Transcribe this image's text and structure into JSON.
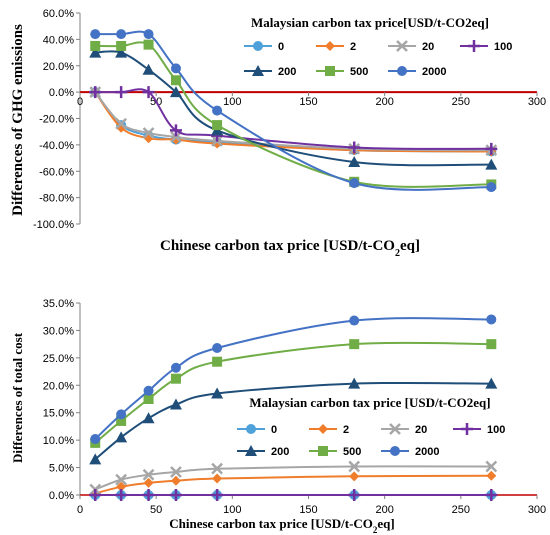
{
  "chart_data": [
    {
      "type": "line",
      "ylabel": "Differences of GHG emissions",
      "xlabel_main": "Chinese carbon tax price [USD/t-CO",
      "xlabel_sub": "2",
      "xlabel_tail": "eq]",
      "legend_title": "Malaysian carbon tax price[USD/t-CO2eq]",
      "xlim": [
        0,
        300
      ],
      "ylim": [
        -100,
        60
      ],
      "x_ticks": [
        0,
        50,
        100,
        150,
        200,
        250,
        300
      ],
      "x_tick_labels": [
        "0",
        "50",
        "100",
        "150",
        "200",
        "250",
        "300"
      ],
      "y_ticks": [
        60,
        40,
        20,
        0,
        -20,
        -40,
        -60,
        -80,
        -100
      ],
      "y_tick_labels": [
        "60.0%",
        "40.0%",
        "20.0%",
        "0.0%",
        "-20.0%",
        "-40.0%",
        "-60.0%",
        "-80.0%",
        "-100.0%"
      ],
      "grid": false,
      "legend_position": "top-right",
      "series": [
        {
          "name": "0",
          "color": "#4ea1d9",
          "marker": "circle",
          "x": [
            10,
            27,
            45,
            63,
            90,
            180,
            270
          ],
          "y": [
            0,
            -25,
            -33,
            -36,
            -38,
            -44,
            -45
          ]
        },
        {
          "name": "2",
          "color": "#f07d2c",
          "marker": "diamond",
          "x": [
            10,
            27,
            45,
            63,
            90,
            180,
            270
          ],
          "y": [
            0,
            -27,
            -35,
            -36,
            -39,
            -44,
            -45
          ]
        },
        {
          "name": "20",
          "color": "#a6a6a6",
          "marker": "x",
          "x": [
            10,
            27,
            45,
            63,
            90,
            180,
            270
          ],
          "y": [
            0,
            -24,
            -31,
            -34,
            -37,
            -43,
            -44
          ]
        },
        {
          "name": "100",
          "color": "#7030a0",
          "marker": "plus",
          "x": [
            10,
            27,
            45,
            63,
            90,
            180,
            270
          ],
          "y": [
            0,
            0,
            0,
            -29,
            -33,
            -42,
            -43
          ]
        },
        {
          "name": "200",
          "color": "#1f4e79",
          "marker": "triangle",
          "x": [
            10,
            27,
            45,
            63,
            90,
            180,
            270
          ],
          "y": [
            30,
            30,
            17,
            0,
            -29,
            -53,
            -55
          ]
        },
        {
          "name": "500",
          "color": "#70ad47",
          "marker": "square",
          "x": [
            10,
            27,
            45,
            63,
            90,
            180,
            270
          ],
          "y": [
            35,
            35,
            36,
            9,
            -25,
            -68,
            -70
          ]
        },
        {
          "name": "2000",
          "color": "#4472c4",
          "marker": "circle",
          "x": [
            10,
            27,
            45,
            63,
            90,
            180,
            270
          ],
          "y": [
            44,
            44,
            44,
            18,
            -14,
            -69,
            -72
          ]
        }
      ]
    },
    {
      "type": "line",
      "ylabel": "Differences of total cost",
      "xlabel_main": "Chinese carbon tax price [USD/t-CO",
      "xlabel_sub": "2",
      "xlabel_tail": "eq]",
      "legend_title": "Malaysian carbon tax price [USD/t-CO2eq]",
      "xlim": [
        0,
        300
      ],
      "ylim": [
        0,
        35
      ],
      "x_ticks": [
        0,
        50,
        100,
        150,
        200,
        250,
        300
      ],
      "x_tick_labels": [
        "0",
        "50",
        "100",
        "150",
        "200",
        "250",
        "300"
      ],
      "y_ticks": [
        35,
        30,
        25,
        20,
        15,
        10,
        5,
        0
      ],
      "y_tick_labels": [
        "35.0%",
        "30.0%",
        "25.0%",
        "20.0%",
        "15.0%",
        "10.0%",
        "5.0%",
        "0.0%"
      ],
      "grid": false,
      "legend_position": "center-right",
      "series": [
        {
          "name": "0",
          "color": "#4ea1d9",
          "marker": "circle",
          "x": [
            10,
            27,
            45,
            63,
            90,
            180,
            270
          ],
          "y": [
            0,
            0,
            0,
            0,
            0,
            0,
            0
          ]
        },
        {
          "name": "2",
          "color": "#f07d2c",
          "marker": "diamond",
          "x": [
            10,
            27,
            45,
            63,
            90,
            180,
            270
          ],
          "y": [
            0.3,
            1.5,
            2.2,
            2.6,
            3.0,
            3.4,
            3.5
          ]
        },
        {
          "name": "20",
          "color": "#a6a6a6",
          "marker": "x",
          "x": [
            10,
            27,
            45,
            63,
            90,
            180,
            270
          ],
          "y": [
            1.0,
            2.8,
            3.7,
            4.2,
            4.8,
            5.2,
            5.2
          ]
        },
        {
          "name": "100",
          "color": "#7030a0",
          "marker": "plus",
          "x": [
            10,
            27,
            45,
            63,
            90,
            180,
            270
          ],
          "y": [
            0,
            0,
            0,
            0,
            0,
            0,
            0
          ]
        },
        {
          "name": "200",
          "color": "#1f4e79",
          "marker": "triangle",
          "x": [
            10,
            27,
            45,
            63,
            90,
            180,
            270
          ],
          "y": [
            6.5,
            10.5,
            14.0,
            16.5,
            18.5,
            20.3,
            20.3
          ]
        },
        {
          "name": "500",
          "color": "#70ad47",
          "marker": "square",
          "x": [
            10,
            27,
            45,
            63,
            90,
            180,
            270
          ],
          "y": [
            9.5,
            13.5,
            17.5,
            21.2,
            24.3,
            27.5,
            27.5
          ]
        },
        {
          "name": "2000",
          "color": "#4472c4",
          "marker": "circle",
          "x": [
            10,
            27,
            45,
            63,
            90,
            180,
            270
          ],
          "y": [
            10.2,
            14.7,
            19.0,
            23.2,
            26.8,
            31.8,
            32.0
          ]
        }
      ]
    }
  ]
}
